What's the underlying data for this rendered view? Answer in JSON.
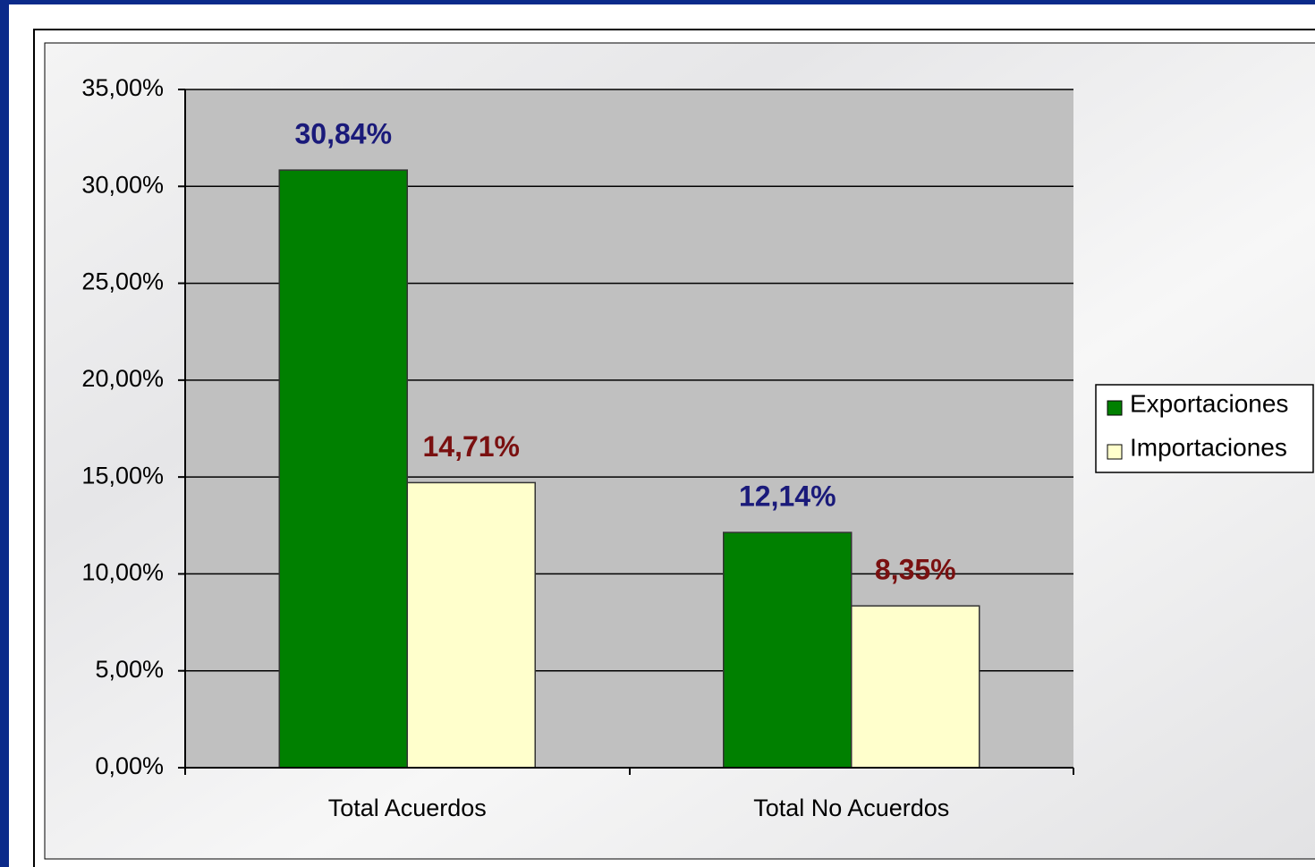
{
  "chart_data": {
    "type": "bar",
    "categories": [
      "Total Acuerdos",
      "Total No Acuerdos"
    ],
    "series": [
      {
        "name": "Exportaciones",
        "color": "#008000",
        "label_color": "#1a1a7a",
        "values": [
          30.84,
          12.14
        ],
        "value_labels": [
          "30,84%",
          "12,14%"
        ]
      },
      {
        "name": "Importaciones",
        "color": "#ffffcc",
        "label_color": "#7a1010",
        "values": [
          14.71,
          8.35
        ],
        "value_labels": [
          "14,71%",
          "8,35%"
        ]
      }
    ],
    "ylim": [
      0,
      35
    ],
    "yticks": [
      {
        "value": 0,
        "label": "0,00%"
      },
      {
        "value": 5,
        "label": "5,00%"
      },
      {
        "value": 10,
        "label": "10,00%"
      },
      {
        "value": 15,
        "label": "15,00%"
      },
      {
        "value": 20,
        "label": "20,00%"
      },
      {
        "value": 25,
        "label": "25,00%"
      },
      {
        "value": 30,
        "label": "30,00%"
      },
      {
        "value": 35,
        "label": "35,00%"
      }
    ],
    "grid": true,
    "legend": "right"
  }
}
